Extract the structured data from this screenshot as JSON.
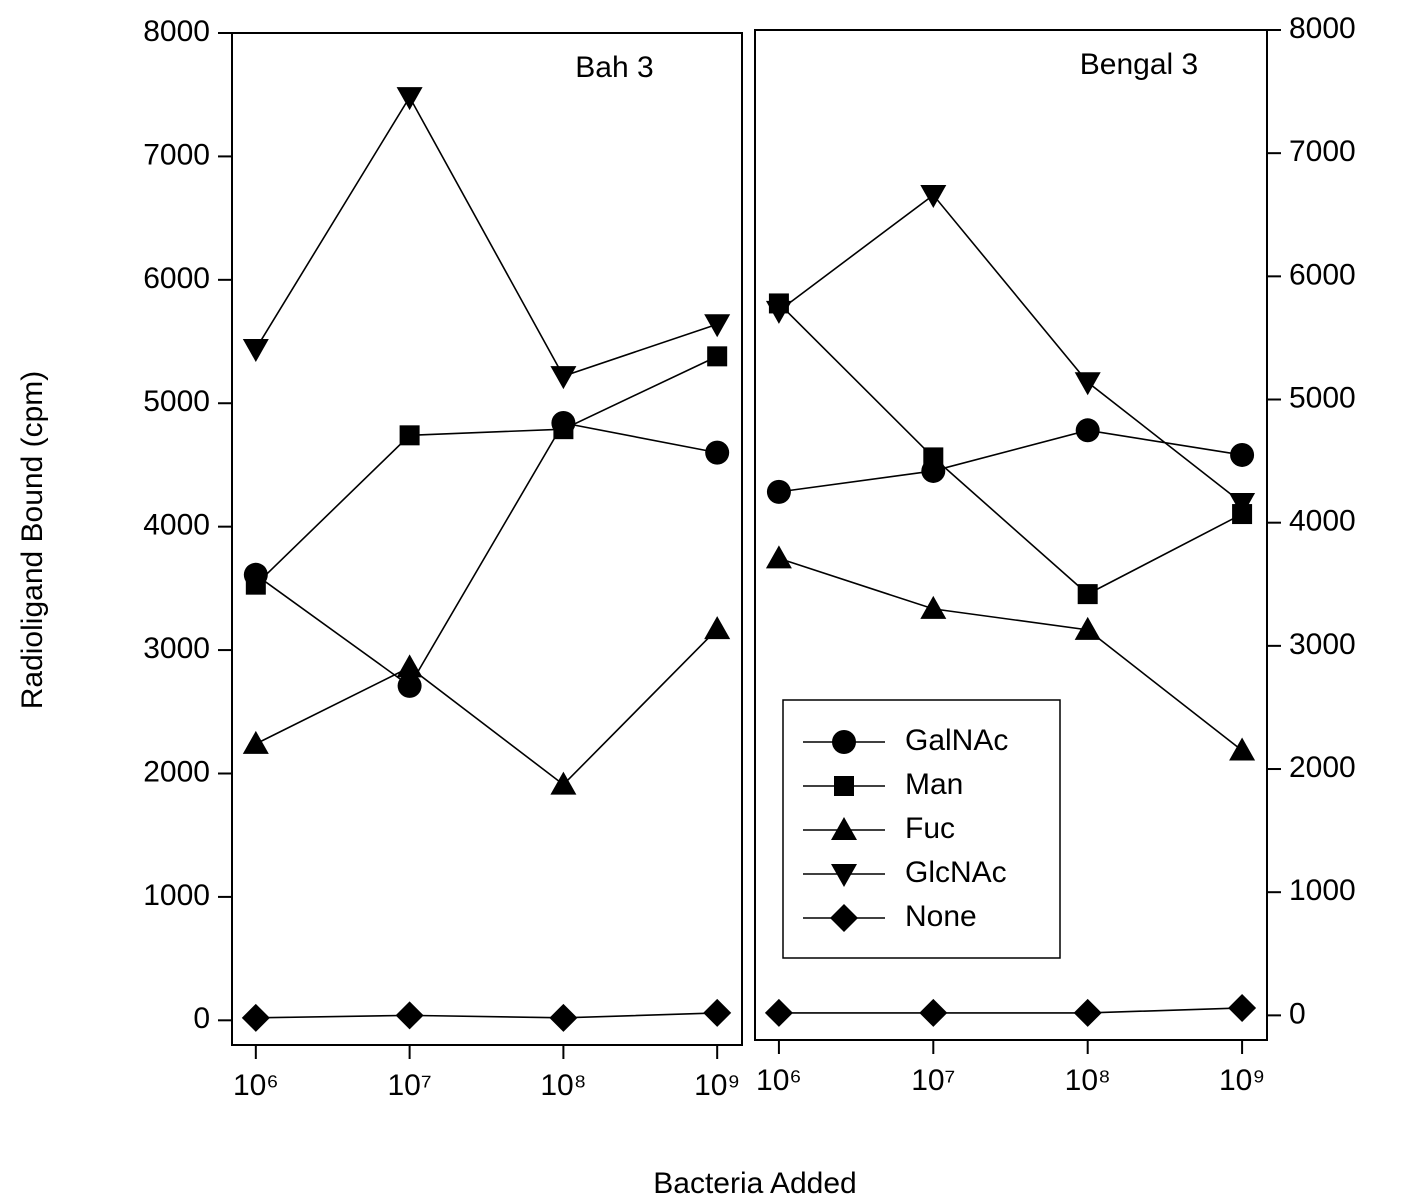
{
  "ylabel": "Radioligand Bound (cpm)",
  "xlabel": "Bacteria Added",
  "chart_data": [
    {
      "type": "line",
      "title": "Bah 3",
      "x": [
        1000000,
        10000000,
        100000000,
        1000000000
      ],
      "xscale": "log",
      "xlim": [
        700000,
        1450000000
      ],
      "xticks": [
        {
          "value": 1000000,
          "label": "10⁶"
        },
        {
          "value": 10000000,
          "label": "10⁷"
        },
        {
          "value": 100000000,
          "label": "10⁸"
        },
        {
          "value": 1000000000,
          "label": "10⁹"
        }
      ],
      "ylim": [
        -200,
        8000
      ],
      "yticks": [
        0,
        1000,
        2000,
        3000,
        4000,
        5000,
        6000,
        7000,
        8000
      ],
      "yaxis_side": "left",
      "series": [
        {
          "marker": "circle",
          "color": "#000000",
          "values": [
            3610,
            2710,
            4840,
            4600
          ]
        },
        {
          "marker": "square",
          "color": "#000000",
          "values": [
            3530,
            4740,
            4790,
            5380
          ]
        },
        {
          "marker": "triangle-up",
          "color": "#000000",
          "values": [
            2240,
            2860,
            1910,
            3170
          ]
        },
        {
          "marker": "triangle-down",
          "color": "#000000",
          "values": [
            5440,
            7480,
            5220,
            5640
          ]
        },
        {
          "marker": "diamond",
          "color": "#000000",
          "values": [
            20,
            40,
            20,
            60
          ]
        }
      ]
    },
    {
      "type": "line",
      "title": "Bengal 3",
      "x": [
        1000000,
        10000000,
        100000000,
        1000000000
      ],
      "xscale": "log",
      "xlim": [
        700000,
        1450000000
      ],
      "xticks": [
        {
          "value": 1000000,
          "label": "10⁶"
        },
        {
          "value": 10000000,
          "label": "10⁷"
        },
        {
          "value": 100000000,
          "label": "10⁸"
        },
        {
          "value": 1000000000,
          "label": "10⁹"
        }
      ],
      "ylim": [
        -200,
        8000
      ],
      "yticks": [
        0,
        1000,
        2000,
        3000,
        4000,
        5000,
        6000,
        7000,
        8000
      ],
      "yaxis_side": "right",
      "legend": "lower left",
      "series": [
        {
          "name": "GalNAc",
          "marker": "circle",
          "color": "#000000",
          "values": [
            4250,
            4420,
            4750,
            4550
          ]
        },
        {
          "name": "Man",
          "marker": "square",
          "color": "#000000",
          "values": [
            5780,
            4530,
            3420,
            4070
          ]
        },
        {
          "name": "Fuc",
          "marker": "triangle-up",
          "color": "#000000",
          "values": [
            3710,
            3300,
            3130,
            2150
          ]
        },
        {
          "name": "GlcNAc",
          "marker": "triangle-down",
          "color": "#000000",
          "values": [
            5720,
            6660,
            5140,
            4160
          ]
        },
        {
          "name": "None",
          "marker": "diamond",
          "color": "#000000",
          "values": [
            20,
            20,
            20,
            60
          ]
        }
      ]
    }
  ]
}
